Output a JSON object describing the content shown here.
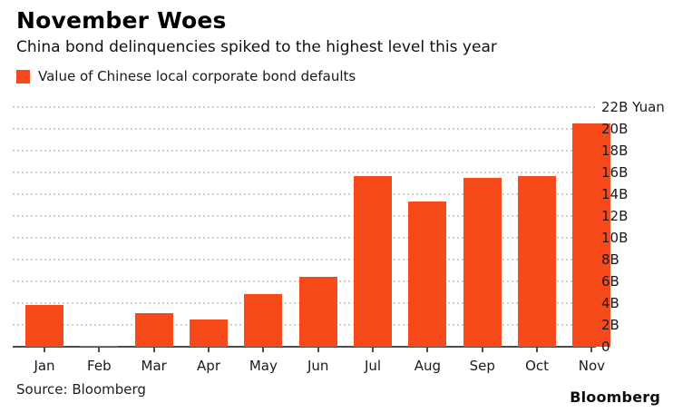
{
  "header": {
    "title": "November Woes",
    "subtitle": "China bond delinquencies spiked to the highest level this year"
  },
  "legend": {
    "label": "Value of Chinese local corporate bond defaults",
    "swatch_color": "#F74A1B"
  },
  "chart_data": {
    "type": "bar",
    "title": "November Woes",
    "subtitle": "China bond delinquencies spiked to the highest level this year",
    "categories": [
      "Jan",
      "Feb",
      "Mar",
      "Apr",
      "May",
      "Jun",
      "Jul",
      "Aug",
      "Sep",
      "Oct",
      "Nov"
    ],
    "values": [
      3.8,
      0.1,
      3.1,
      2.5,
      4.8,
      6.4,
      15.7,
      13.3,
      15.5,
      15.7,
      20.5
    ],
    "series_name": "Value of Chinese local corporate bond defaults",
    "unit": "B Yuan",
    "xlabel": "",
    "ylabel": "Yuan",
    "ylim": [
      0,
      22
    ],
    "ytick_step": 2,
    "ytick_labels": [
      "0",
      "2B",
      "4B",
      "6B",
      "8B",
      "10B",
      "12B",
      "14B",
      "16B",
      "18B",
      "20B",
      "22B Yuan"
    ],
    "grid": "horizontal-dotted",
    "legend_position": "top-left",
    "bar_color": "#F74A1B",
    "gridline_color": "#C2C2C2",
    "axis_color": "#4D4D4D"
  },
  "footer": {
    "source": "Source: Bloomberg",
    "logo": "Bloomberg"
  }
}
